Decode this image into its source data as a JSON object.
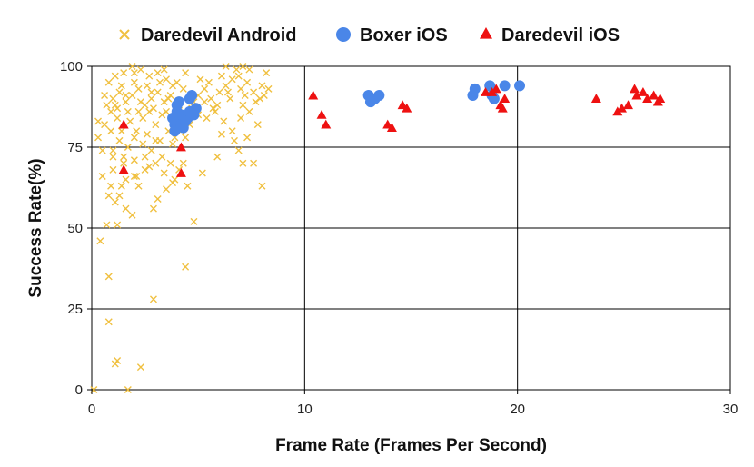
{
  "chart_data": {
    "type": "scatter",
    "title": "",
    "xlabel": "Frame Rate (Frames Per Second)",
    "ylabel": "Success Rate(%)",
    "xlim": [
      0,
      30
    ],
    "ylim": [
      0,
      100
    ],
    "xticks": [
      0,
      10,
      20,
      30
    ],
    "yticks": [
      0,
      25,
      50,
      75,
      100
    ],
    "grid": true,
    "legend_position": "top",
    "series": [
      {
        "name": "Daredevil Android",
        "marker": "x",
        "color": "#F0C040",
        "points": [
          [
            0.1,
            0
          ],
          [
            1.7,
            0
          ],
          [
            2.3,
            7
          ],
          [
            1.2,
            9
          ],
          [
            1.1,
            8
          ],
          [
            0.8,
            21
          ],
          [
            2.9,
            28
          ],
          [
            4.4,
            38
          ],
          [
            0.8,
            35
          ],
          [
            0.4,
            46
          ],
          [
            0.7,
            51
          ],
          [
            1.2,
            51
          ],
          [
            4.8,
            52
          ],
          [
            1.1,
            58
          ],
          [
            1.9,
            54
          ],
          [
            2.9,
            56
          ],
          [
            3.1,
            59
          ],
          [
            3.5,
            62
          ],
          [
            3.8,
            64
          ],
          [
            4.5,
            63
          ],
          [
            2.2,
            63
          ],
          [
            0.9,
            63
          ],
          [
            1.3,
            60
          ],
          [
            1.6,
            65
          ],
          [
            2.0,
            66
          ],
          [
            2.5,
            68
          ],
          [
            3.0,
            70
          ],
          [
            3.9,
            65
          ],
          [
            5.2,
            67
          ],
          [
            5.9,
            72
          ],
          [
            6.9,
            74
          ],
          [
            7.1,
            70
          ],
          [
            7.6,
            70
          ],
          [
            8.0,
            63
          ],
          [
            0.3,
            78
          ],
          [
            0.5,
            74
          ],
          [
            1.0,
            74
          ],
          [
            1.5,
            72
          ],
          [
            2.0,
            71
          ],
          [
            2.4,
            76
          ],
          [
            2.8,
            74
          ],
          [
            3.3,
            72
          ],
          [
            3.7,
            70
          ],
          [
            4.3,
            70
          ],
          [
            0.6,
            82
          ],
          [
            0.9,
            86
          ],
          [
            1.2,
            84
          ],
          [
            1.4,
            80
          ],
          [
            1.8,
            83
          ],
          [
            2.1,
            80
          ],
          [
            2.4,
            84
          ],
          [
            2.7,
            86
          ],
          [
            3.0,
            82
          ],
          [
            3.3,
            85
          ],
          [
            3.6,
            80
          ],
          [
            3.9,
            78
          ],
          [
            4.2,
            80
          ],
          [
            4.6,
            82
          ],
          [
            5.0,
            85
          ],
          [
            5.4,
            84
          ],
          [
            5.8,
            86
          ],
          [
            6.2,
            83
          ],
          [
            6.6,
            80
          ],
          [
            7.0,
            84
          ],
          [
            7.4,
            86
          ],
          [
            7.8,
            82
          ],
          [
            0.7,
            88
          ],
          [
            1.0,
            90
          ],
          [
            1.3,
            92
          ],
          [
            1.6,
            89
          ],
          [
            1.9,
            91
          ],
          [
            2.2,
            93
          ],
          [
            2.5,
            88
          ],
          [
            2.8,
            90
          ],
          [
            3.1,
            92
          ],
          [
            3.4,
            89
          ],
          [
            3.7,
            91
          ],
          [
            4.0,
            95
          ],
          [
            4.3,
            93
          ],
          [
            4.6,
            90
          ],
          [
            5.0,
            91
          ],
          [
            5.3,
            93
          ],
          [
            5.6,
            90
          ],
          [
            6.0,
            92
          ],
          [
            6.3,
            94
          ],
          [
            6.6,
            96
          ],
          [
            7.0,
            93
          ],
          [
            7.3,
            95
          ],
          [
            7.6,
            92
          ],
          [
            8.0,
            94
          ],
          [
            8.2,
            98
          ],
          [
            8.3,
            93
          ],
          [
            1.1,
            97
          ],
          [
            1.5,
            98
          ],
          [
            1.9,
            100
          ],
          [
            2.3,
            99
          ],
          [
            2.7,
            97
          ],
          [
            3.1,
            98
          ],
          [
            3.5,
            96
          ],
          [
            4.4,
            98
          ],
          [
            6.3,
            100
          ],
          [
            6.8,
            99
          ],
          [
            7.1,
            100
          ],
          [
            7.4,
            99
          ],
          [
            0.8,
            95
          ],
          [
            1.4,
            94
          ],
          [
            2.0,
            95
          ],
          [
            2.6,
            94
          ],
          [
            3.2,
            95
          ],
          [
            3.8,
            94
          ],
          [
            5.1,
            96
          ],
          [
            5.5,
            95
          ],
          [
            6.1,
            97
          ],
          [
            6.9,
            97
          ],
          [
            0.6,
            91
          ],
          [
            1.1,
            88
          ],
          [
            1.7,
            86
          ],
          [
            2.3,
            89
          ],
          [
            2.9,
            87
          ],
          [
            3.5,
            86
          ],
          [
            4.1,
            88
          ],
          [
            4.7,
            87
          ],
          [
            5.3,
            89
          ],
          [
            5.9,
            88
          ],
          [
            6.5,
            90
          ],
          [
            7.1,
            88
          ],
          [
            7.7,
            89
          ],
          [
            0.9,
            80
          ],
          [
            1.3,
            77
          ],
          [
            2.0,
            78
          ],
          [
            2.6,
            79
          ],
          [
            3.2,
            77
          ],
          [
            3.8,
            76
          ],
          [
            4.4,
            78
          ],
          [
            6.1,
            79
          ],
          [
            6.7,
            77
          ],
          [
            7.3,
            78
          ],
          [
            1.0,
            68
          ],
          [
            1.5,
            70
          ],
          [
            2.1,
            66
          ],
          [
            2.7,
            69
          ],
          [
            3.4,
            67
          ],
          [
            4.1,
            68
          ],
          [
            1.2,
            87
          ],
          [
            1.6,
            91
          ],
          [
            2.2,
            86
          ],
          [
            2.8,
            92
          ],
          [
            3.6,
            90
          ],
          [
            4.8,
            89
          ],
          [
            5.7,
            87
          ],
          [
            6.4,
            92
          ],
          [
            7.2,
            91
          ],
          [
            7.9,
            90
          ],
          [
            8.1,
            91
          ],
          [
            0.5,
            66
          ],
          [
            0.3,
            83
          ],
          [
            1.7,
            75
          ],
          [
            2.5,
            72
          ],
          [
            3.0,
            77
          ],
          [
            0.8,
            60
          ],
          [
            1.4,
            63
          ],
          [
            1.6,
            56
          ],
          [
            1.0,
            72
          ],
          [
            2.0,
            98
          ],
          [
            3.4,
            99
          ]
        ]
      },
      {
        "name": "Boxer iOS",
        "marker": "circle",
        "color": "#4A86E8",
        "points": [
          [
            3.8,
            84
          ],
          [
            3.9,
            82
          ],
          [
            4.0,
            81
          ],
          [
            4.1,
            83
          ],
          [
            4.2,
            82
          ],
          [
            4.0,
            86
          ],
          [
            4.0,
            88
          ],
          [
            4.1,
            89
          ],
          [
            4.2,
            85
          ],
          [
            4.3,
            81
          ],
          [
            4.5,
            84
          ],
          [
            4.6,
            90
          ],
          [
            4.7,
            91
          ],
          [
            4.8,
            85
          ],
          [
            4.9,
            87
          ],
          [
            3.9,
            80
          ],
          [
            4.4,
            83
          ],
          [
            4.6,
            86
          ],
          [
            13.0,
            91
          ],
          [
            13.1,
            89
          ],
          [
            13.3,
            90
          ],
          [
            13.5,
            91
          ],
          [
            17.9,
            91
          ],
          [
            18.0,
            93
          ],
          [
            18.7,
            94
          ],
          [
            18.8,
            91
          ],
          [
            18.9,
            90
          ],
          [
            19.4,
            94
          ],
          [
            20.1,
            94
          ]
        ]
      },
      {
        "name": "Daredevil iOS",
        "marker": "triangle",
        "color": "#EE1111",
        "points": [
          [
            1.5,
            82
          ],
          [
            1.5,
            68
          ],
          [
            4.2,
            75
          ],
          [
            4.2,
            67
          ],
          [
            10.4,
            91
          ],
          [
            10.8,
            85
          ],
          [
            11.0,
            82
          ],
          [
            13.9,
            82
          ],
          [
            14.1,
            81
          ],
          [
            14.6,
            88
          ],
          [
            14.8,
            87
          ],
          [
            18.5,
            92
          ],
          [
            18.8,
            92
          ],
          [
            19.0,
            93
          ],
          [
            19.2,
            88
          ],
          [
            19.3,
            87
          ],
          [
            19.4,
            90
          ],
          [
            23.7,
            90
          ],
          [
            24.7,
            86
          ],
          [
            24.9,
            87
          ],
          [
            25.2,
            88
          ],
          [
            25.5,
            93
          ],
          [
            25.6,
            91
          ],
          [
            25.9,
            92
          ],
          [
            26.1,
            90
          ],
          [
            26.4,
            91
          ],
          [
            26.6,
            89
          ],
          [
            26.7,
            90
          ]
        ]
      }
    ]
  }
}
